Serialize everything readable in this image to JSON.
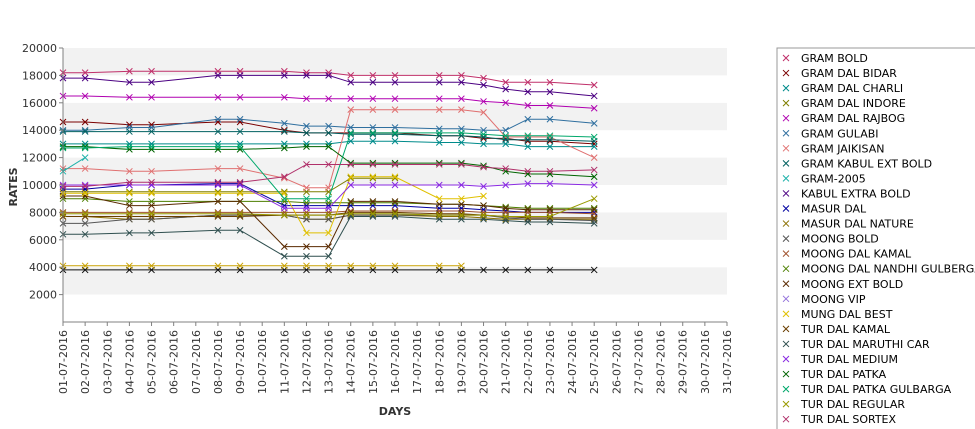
{
  "chart_data": {
    "type": "line",
    "title": "",
    "xlabel": "DAYS",
    "ylabel": "RATES",
    "ylim": [
      0,
      20000
    ],
    "y_ticks": [
      2000,
      4000,
      6000,
      8000,
      10000,
      12000,
      14000,
      16000,
      18000,
      20000
    ],
    "grid": "alternating horizontal bands",
    "legend_position": "right",
    "categories": [
      "01-07-2016",
      "02-07-2016",
      "03-07-2016",
      "04-07-2016",
      "05-07-2016",
      "06-07-2016",
      "07-07-2016",
      "08-07-2016",
      "09-07-2016",
      "10-07-2016",
      "11-07-2016",
      "12-07-2016",
      "13-07-2016",
      "14-07-2016",
      "15-07-2016",
      "16-07-2016",
      "17-07-2016",
      "18-07-2016",
      "19-07-2016",
      "20-07-2016",
      "21-07-2016",
      "22-07-2016",
      "23-07-2016",
      "24-07-2016",
      "25-07-2016",
      "26-07-2016",
      "27-07-2016",
      "28-07-2016",
      "29-07-2016",
      "30-07-2016",
      "31-07-2016"
    ],
    "series": [
      {
        "name": "GRAM BOLD",
        "color": "#c0306a",
        "values": [
          18200,
          18200,
          null,
          18300,
          18300,
          null,
          null,
          18300,
          18300,
          null,
          18300,
          18200,
          18200,
          18000,
          18000,
          18000,
          null,
          18000,
          18000,
          17800,
          17500,
          17500,
          17500,
          null,
          17300,
          null,
          null,
          null,
          null,
          null,
          null
        ]
      },
      {
        "name": "GRAM DAL BIDAR",
        "color": "#7a0000",
        "values": [
          14600,
          14600,
          null,
          14400,
          14400,
          null,
          null,
          14600,
          14600,
          null,
          14000,
          13800,
          13800,
          13800,
          13800,
          13800,
          null,
          13600,
          13600,
          13400,
          13400,
          13200,
          13200,
          null,
          13000,
          null,
          null,
          null,
          null,
          null,
          null
        ]
      },
      {
        "name": "GRAM DAL CHARLI",
        "color": "#008b8b",
        "values": [
          13000,
          13000,
          null,
          13000,
          13000,
          null,
          null,
          13000,
          13000,
          null,
          13000,
          13000,
          13000,
          13200,
          13200,
          13200,
          null,
          13100,
          13100,
          13000,
          13000,
          12800,
          12800,
          null,
          12800,
          null,
          null,
          null,
          null,
          null,
          null
        ]
      },
      {
        "name": "GRAM DAL INDORE",
        "color": "#7f7f00",
        "values": [
          9500,
          9500,
          null,
          9500,
          9500,
          null,
          null,
          9500,
          9500,
          null,
          9500,
          9500,
          9500,
          10500,
          10500,
          10500,
          null,
          null,
          null,
          null,
          null,
          null,
          null,
          null,
          null,
          null,
          null,
          null,
          null,
          null,
          null
        ]
      },
      {
        "name": "GRAM DAL RAJBOG",
        "color": "#b000b0",
        "values": [
          16500,
          16500,
          null,
          16400,
          16400,
          null,
          null,
          16400,
          16400,
          null,
          16400,
          16300,
          16300,
          16300,
          16300,
          16300,
          null,
          16300,
          16300,
          16100,
          16000,
          15800,
          15800,
          null,
          15600,
          null,
          null,
          null,
          null,
          null,
          null
        ]
      },
      {
        "name": "GRAM GULABI",
        "color": "#2f6f9f",
        "values": [
          14000,
          14000,
          null,
          14200,
          14200,
          null,
          null,
          14800,
          14800,
          null,
          14500,
          14300,
          14300,
          14200,
          14200,
          14200,
          null,
          14100,
          14100,
          14000,
          14000,
          14800,
          14800,
          null,
          14500,
          null,
          null,
          null,
          null,
          null,
          null
        ]
      },
      {
        "name": "GRAM JAIKISAN",
        "color": "#e07070",
        "values": [
          11200,
          11200,
          null,
          11000,
          11000,
          null,
          null,
          11200,
          11200,
          null,
          10500,
          9800,
          9800,
          15500,
          15500,
          15500,
          null,
          15500,
          15500,
          15300,
          13500,
          13500,
          13500,
          null,
          12000,
          null,
          null,
          null,
          null,
          null,
          null
        ]
      },
      {
        "name": "GRAM KABUL EXT BOLD",
        "color": "#006060",
        "values": [
          13900,
          13900,
          null,
          13900,
          13900,
          null,
          null,
          13900,
          13900,
          null,
          13900,
          13800,
          13800,
          13700,
          13700,
          13700,
          null,
          13600,
          13600,
          13500,
          13300,
          13300,
          13300,
          null,
          13200,
          null,
          null,
          null,
          null,
          null,
          null
        ]
      },
      {
        "name": "GRAM-2005",
        "color": "#20b2aa",
        "values": [
          11000,
          12000,
          null,
          null,
          null,
          null,
          null,
          null,
          null,
          null,
          null,
          null,
          null,
          null,
          null,
          null,
          null,
          null,
          null,
          null,
          null,
          null,
          null,
          null,
          null,
          null,
          null,
          null,
          null,
          null,
          null
        ]
      },
      {
        "name": "KABUL EXTRA BOLD",
        "color": "#4b0082",
        "values": [
          17800,
          17800,
          null,
          17500,
          17500,
          null,
          null,
          18000,
          18000,
          null,
          18000,
          18000,
          18000,
          17500,
          17500,
          17500,
          null,
          17500,
          17500,
          17300,
          17000,
          16800,
          16800,
          null,
          16500,
          null,
          null,
          null,
          null,
          null,
          null
        ]
      },
      {
        "name": "MASUR DAL",
        "color": "#0000a0",
        "values": [
          9700,
          9700,
          null,
          10000,
          10000,
          null,
          null,
          10100,
          10100,
          null,
          8500,
          8500,
          8500,
          8500,
          8500,
          8500,
          null,
          8300,
          8300,
          8200,
          8100,
          8000,
          8000,
          null,
          8000,
          null,
          null,
          null,
          null,
          null,
          null
        ]
      },
      {
        "name": "MASUR DAL NATURE",
        "color": "#8b6f00",
        "values": [
          7700,
          7700,
          null,
          7500,
          7500,
          null,
          null,
          7800,
          7800,
          null,
          7800,
          7500,
          7500,
          7800,
          7800,
          7800,
          null,
          7700,
          7700,
          7600,
          7500,
          7500,
          7500,
          null,
          7500,
          null,
          null,
          null,
          null,
          null,
          null
        ]
      },
      {
        "name": "MOONG BOLD",
        "color": "#555555",
        "values": [
          7200,
          7200,
          null,
          7500,
          7500,
          null,
          null,
          7800,
          7800,
          null,
          7800,
          7500,
          7500,
          7800,
          7800,
          7800,
          null,
          7800,
          7800,
          7800,
          7600,
          7500,
          7500,
          null,
          7400,
          null,
          null,
          null,
          null,
          null,
          null
        ]
      },
      {
        "name": "MOONG DAL KAMAL",
        "color": "#a0522d",
        "values": [
          8000,
          8000,
          null,
          8000,
          8000,
          null,
          null,
          8000,
          8000,
          null,
          8000,
          8000,
          8000,
          8100,
          8100,
          8100,
          null,
          8100,
          8100,
          8000,
          8000,
          8000,
          8000,
          null,
          7900,
          null,
          null,
          null,
          null,
          null,
          null
        ]
      },
      {
        "name": "MOONG DAL NANDHI GULBERGA",
        "color": "#4d7f00",
        "values": [
          9000,
          9000,
          null,
          8800,
          8800,
          null,
          null,
          8800,
          8800,
          null,
          8800,
          8700,
          8700,
          8700,
          8700,
          8700,
          null,
          8600,
          8600,
          8500,
          8400,
          8300,
          8300,
          null,
          8300,
          null,
          null,
          null,
          null,
          null,
          null
        ]
      },
      {
        "name": "MOONG EXT BOLD",
        "color": "#5a2a00",
        "values": [
          9200,
          9200,
          null,
          8500,
          8500,
          null,
          null,
          8800,
          8800,
          null,
          5500,
          5500,
          5500,
          8800,
          8800,
          8800,
          null,
          8600,
          8600,
          8500,
          8300,
          8200,
          8200,
          null,
          8200,
          null,
          null,
          null,
          null,
          null,
          null
        ]
      },
      {
        "name": "MOONG VIP",
        "color": "#9370db",
        "values": [
          null,
          null,
          null,
          null,
          null,
          null,
          null,
          null,
          null,
          null,
          null,
          null,
          null,
          null,
          null,
          null,
          null,
          null,
          null,
          null,
          null,
          null,
          null,
          null,
          null,
          null,
          null,
          null,
          null,
          null,
          null
        ]
      },
      {
        "name": "MUNG DAL BEST",
        "color": "#e0c000",
        "values": [
          9400,
          9400,
          null,
          9400,
          9400,
          null,
          null,
          9400,
          9400,
          null,
          9400,
          6500,
          6500,
          10600,
          10600,
          10600,
          null,
          9000,
          9000,
          9200,
          null,
          null,
          null,
          null,
          null,
          null,
          null,
          null,
          null,
          null,
          null
        ]
      },
      {
        "name": "TUR DAL KAMAL",
        "color": "#6b3e00",
        "values": [
          7700,
          7700,
          null,
          7700,
          7700,
          null,
          null,
          7700,
          7700,
          null,
          7800,
          7800,
          7800,
          8000,
          8000,
          8000,
          null,
          7900,
          7900,
          7800,
          7700,
          7600,
          7600,
          null,
          7600,
          null,
          null,
          null,
          null,
          null,
          null
        ]
      },
      {
        "name": "TUR DAL MARUTHI CAR",
        "color": "#2f4f4f",
        "values": [
          6400,
          6400,
          null,
          6500,
          6500,
          null,
          null,
          6700,
          6700,
          null,
          4800,
          4800,
          4800,
          7700,
          7700,
          7700,
          null,
          7500,
          7500,
          7500,
          7400,
          7300,
          7300,
          null,
          7200,
          null,
          null,
          null,
          null,
          null,
          null
        ]
      },
      {
        "name": "TUR DAL MEDIUM",
        "color": "#8a2be2",
        "values": [
          10000,
          10000,
          null,
          10000,
          10000,
          null,
          null,
          10000,
          10000,
          null,
          8300,
          8300,
          8300,
          10000,
          10000,
          10000,
          null,
          10000,
          10000,
          9900,
          10000,
          10100,
          10100,
          null,
          10000,
          null,
          null,
          null,
          null,
          null,
          null
        ]
      },
      {
        "name": "TUR DAL PATKA",
        "color": "#006400",
        "values": [
          12800,
          12800,
          null,
          12600,
          12600,
          null,
          null,
          12600,
          12600,
          null,
          12700,
          12800,
          12800,
          11600,
          11600,
          11600,
          null,
          11600,
          11600,
          11400,
          11000,
          10800,
          10800,
          null,
          10600,
          null,
          null,
          null,
          null,
          null,
          null
        ]
      },
      {
        "name": "TUR DAL PATKA GULBARGA",
        "color": "#00a86b",
        "values": [
          12700,
          12700,
          null,
          12800,
          12800,
          null,
          null,
          12800,
          12800,
          null,
          9000,
          9000,
          9000,
          13800,
          13800,
          13800,
          null,
          13800,
          13800,
          13700,
          13600,
          13600,
          13600,
          null,
          13500,
          null,
          null,
          null,
          null,
          null,
          null
        ]
      },
      {
        "name": "TUR DAL REGULAR",
        "color": "#9a9a00",
        "values": [
          7900,
          7900,
          null,
          7900,
          7900,
          null,
          null,
          7900,
          7900,
          null,
          7800,
          7800,
          7800,
          7900,
          7900,
          7900,
          null,
          7800,
          7800,
          7800,
          7700,
          7700,
          7700,
          null,
          9000,
          null,
          null,
          null,
          null,
          null,
          null
        ]
      },
      {
        "name": "TUR DAL SORTEX",
        "color": "#b0306a",
        "values": [
          9900,
          9900,
          null,
          10200,
          10200,
          null,
          null,
          10200,
          10200,
          null,
          10600,
          11500,
          11500,
          11500,
          11500,
          11500,
          null,
          11500,
          11500,
          11300,
          11200,
          11000,
          11000,
          null,
          11100,
          null,
          null,
          null,
          null,
          null,
          null
        ]
      }
    ],
    "flat_series": [
      {
        "color": "#111111",
        "values": [
          3800,
          3800,
          null,
          3800,
          3800,
          null,
          null,
          3800,
          3800,
          null,
          3800,
          3800,
          3800,
          3800,
          3800,
          3800,
          null,
          3800,
          3800,
          3800,
          3800,
          3800,
          3800,
          null,
          3800,
          null,
          null,
          null,
          null,
          null,
          null
        ]
      },
      {
        "color": "#c8a000",
        "values": [
          4100,
          4100,
          null,
          4100,
          4100,
          null,
          null,
          4100,
          4100,
          null,
          4100,
          4100,
          4100,
          4100,
          4100,
          4100,
          null,
          4100,
          4100,
          null,
          null,
          null,
          null,
          null,
          null,
          null,
          null,
          null,
          null,
          null,
          null
        ]
      }
    ]
  }
}
